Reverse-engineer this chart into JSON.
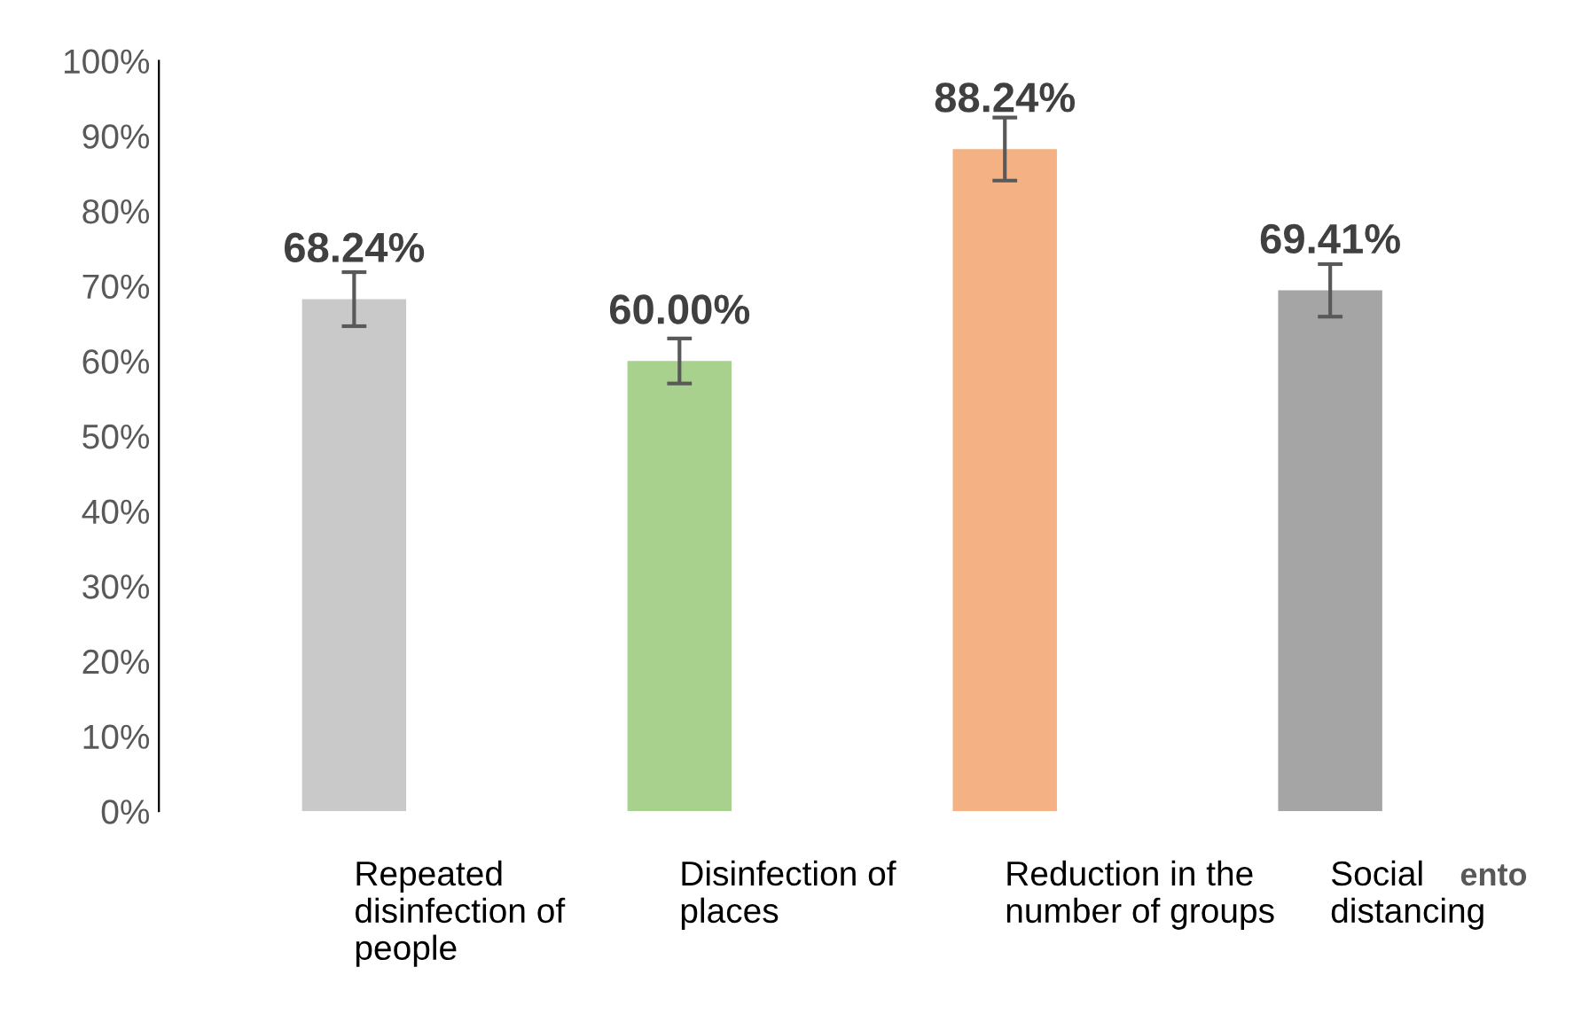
{
  "chart_data": {
    "type": "bar",
    "categories": [
      "Repeated\ndisinfection of\npeople",
      "Disinfection of\nplaces",
      "Reduction in the\nnumber of groups",
      "Social\ndistancing"
    ],
    "values": [
      68.24,
      60.0,
      88.24,
      69.41
    ],
    "colors": [
      "#c9c9c9",
      "#a9d18e",
      "#f4b183",
      "#a5a5a5"
    ],
    "errors": [
      3.6,
      3.0,
      4.2,
      3.5
    ],
    "value_labels": [
      "68.24%",
      "60.00%",
      "88.24%",
      "69.41%"
    ],
    "ylim": [
      0,
      100
    ],
    "yticks": [
      {
        "value": 0,
        "label": "0%"
      },
      {
        "value": 10,
        "label": "10%"
      },
      {
        "value": 20,
        "label": "20%"
      },
      {
        "value": 30,
        "label": "30%"
      },
      {
        "value": 40,
        "label": "40%"
      },
      {
        "value": 50,
        "label": "50%"
      },
      {
        "value": 60,
        "label": "60%"
      },
      {
        "value": 70,
        "label": "70%"
      },
      {
        "value": 80,
        "label": "80%"
      },
      {
        "value": 90,
        "label": "90%"
      },
      {
        "value": 100,
        "label": "100%"
      }
    ],
    "grid": false,
    "annotations": [
      "ento"
    ]
  }
}
